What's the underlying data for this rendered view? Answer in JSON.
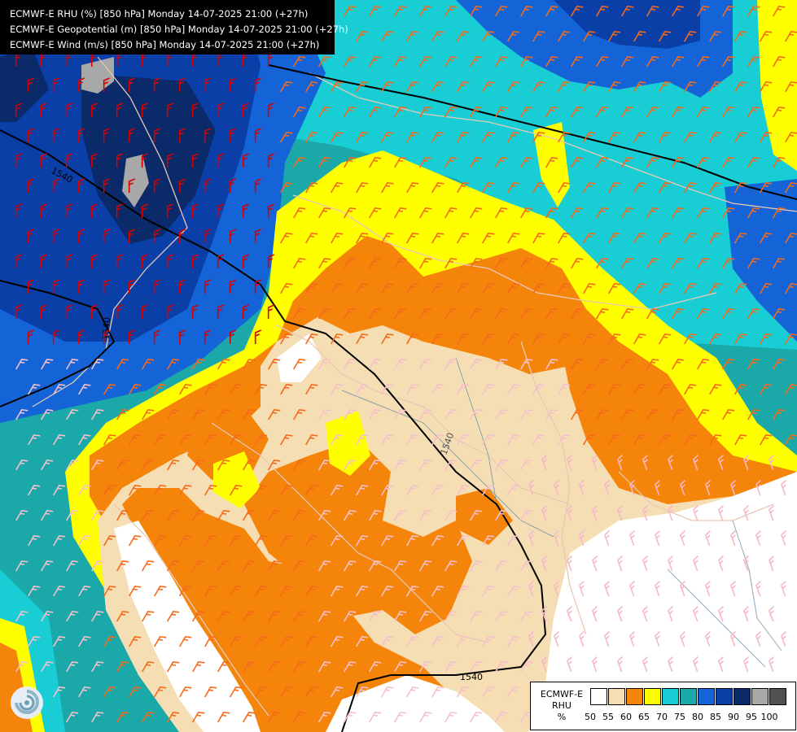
{
  "title_lines": [
    "ECMWF-E RHU (%) [850 hPa] Monday 14-07-2025 21:00 (+27h)",
    "ECMWF-E Geopotential (m) [850 hPa] Monday 14-07-2025 21:00 (+27h)",
    "ECMWF-E Wind (m/s) [850 hPa] Monday 14-07-2025 21:00 (+27h)"
  ],
  "legend": {
    "model": "ECMWF-E",
    "variable": "RHU",
    "unit": "%",
    "ticks": [
      "50",
      "55",
      "60",
      "65",
      "70",
      "75",
      "80",
      "85",
      "90",
      "95",
      "100"
    ],
    "colors": [
      "#ffffff",
      "#f5deb3",
      "#f5840b",
      "#ffff00",
      "#18cdd4",
      "#1aa8a8",
      "#1464d8",
      "#0a3fa8",
      "#0a2a6a",
      "#a8a8a8",
      "#505050"
    ]
  },
  "contours": [
    {
      "label": "1540"
    },
    {
      "label": "1540"
    },
    {
      "label": "1540"
    },
    {
      "label": "1540"
    }
  ],
  "icons": {
    "logo": "ecmwf-swirl-logo-icon"
  }
}
